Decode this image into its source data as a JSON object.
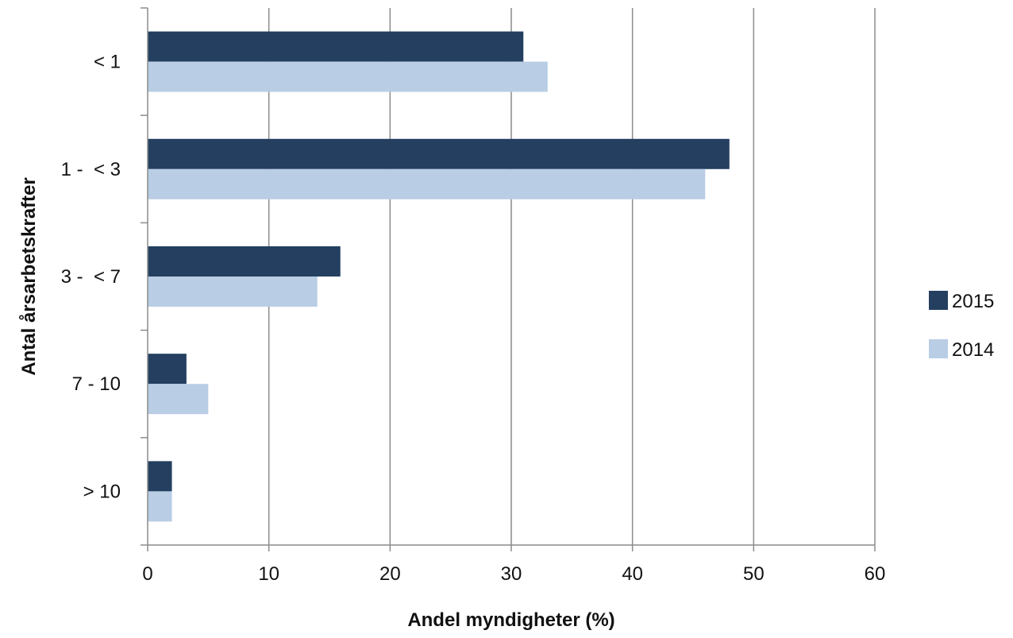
{
  "chart_data": {
    "type": "bar",
    "orientation": "horizontal",
    "categories": [
      "< 1",
      "1 -  < 3",
      "3 -  < 7",
      "7 - 10",
      "> 10"
    ],
    "series": [
      {
        "name": "2015",
        "color": "#243f60",
        "values": [
          31,
          48,
          15.9,
          3.2,
          2
        ]
      },
      {
        "name": "2014",
        "color": "#b9cde5",
        "values": [
          33,
          46,
          14,
          5,
          2
        ]
      }
    ],
    "xlabel": "Andel myndigheter (%)",
    "ylabel": "Antal årsarbetskrafter",
    "xlim": [
      0,
      60
    ],
    "xticks": [
      "0",
      "10",
      "20",
      "30",
      "40",
      "50",
      "60"
    ],
    "grid": "vertical",
    "legend_position": "right"
  }
}
